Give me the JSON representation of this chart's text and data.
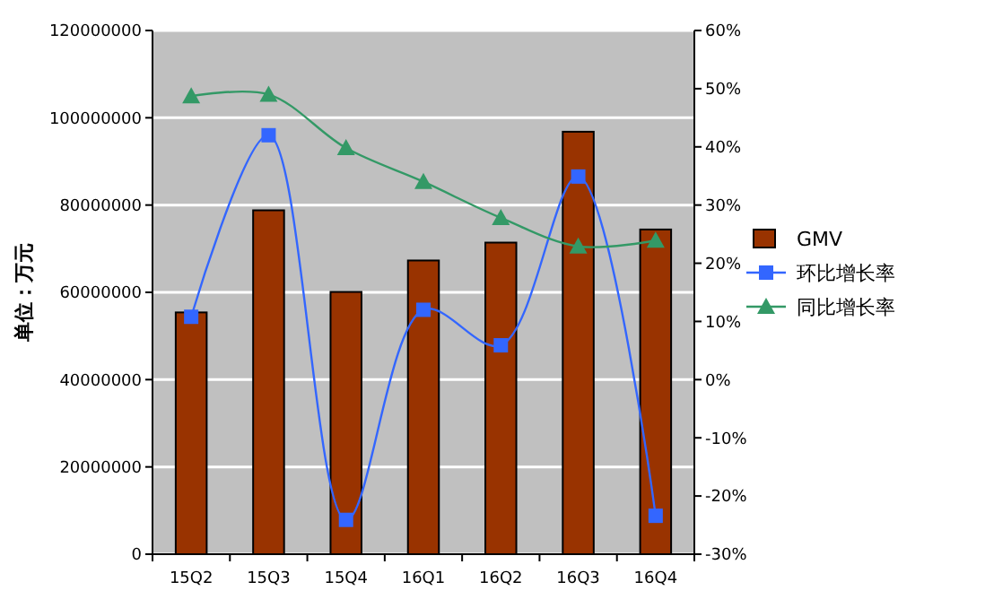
{
  "chart_data": {
    "type": "bar",
    "ylabel": "单位：万元",
    "categories": [
      "15Q2",
      "15Q3",
      "15Q4",
      "16Q1",
      "16Q2",
      "16Q3",
      "16Q4"
    ],
    "series": [
      {
        "name": "GMV",
        "color": "#993300",
        "values": [
          55400000,
          78800000,
          60100000,
          67300000,
          71400000,
          96800000,
          74400000
        ]
      },
      {
        "name": "环比增长率",
        "type": "line",
        "axis": "y2",
        "color": "#3366ff",
        "marker": "square",
        "values": [
          10.8,
          42.0,
          -24.1,
          12.0,
          5.9,
          34.9,
          -23.4
        ]
      },
      {
        "name": "同比增长率",
        "type": "line",
        "axis": "y2",
        "color": "#339966",
        "marker": "triangle",
        "values": [
          48.7,
          49.0,
          39.8,
          34.0,
          27.8,
          22.9,
          23.9
        ]
      }
    ],
    "ylim": [
      0,
      120000000
    ],
    "yticks": [
      0,
      20000000,
      40000000,
      60000000,
      80000000,
      100000000,
      120000000
    ],
    "y2lim": [
      -30,
      60
    ],
    "y2ticks": [
      {
        "value": -30,
        "label": "-30%"
      },
      {
        "value": -20,
        "label": "-20%"
      },
      {
        "value": -10,
        "label": "-10%"
      },
      {
        "value": 0,
        "label": "0%"
      },
      {
        "value": 10,
        "label": "10%"
      },
      {
        "value": 20,
        "label": "20%"
      },
      {
        "value": 30,
        "label": "30%"
      },
      {
        "value": 40,
        "label": "40%"
      },
      {
        "value": 50,
        "label": "50%"
      },
      {
        "value": 60,
        "label": "60%"
      }
    ],
    "grid": "y",
    "legend": "right"
  }
}
